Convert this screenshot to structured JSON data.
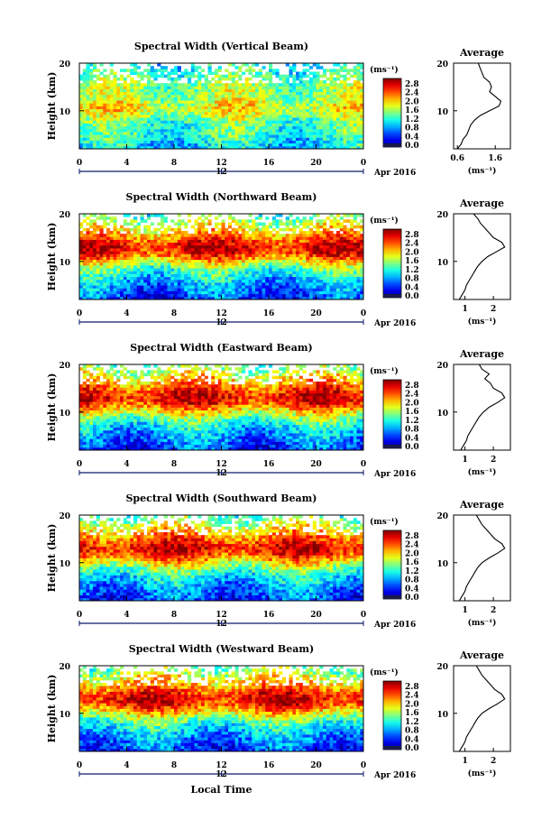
{
  "figure": {
    "xlabel": "Local Time",
    "date_label": "Apr 2016",
    "ylabel": "Height (km)",
    "colorbar_unit": "(ms⁻¹)",
    "avg_title": "Average",
    "avg_xlabel": "(ms⁻¹)",
    "x_ticks": [
      "0",
      "4",
      "8",
      "12",
      "16",
      "20",
      "0"
    ],
    "x_sub_tick": "12",
    "y_ticks": [
      "20",
      "10"
    ],
    "colorbar_ticks": [
      "2.8",
      "2.4",
      "2.0",
      "1.6",
      "1.2",
      "0.8",
      "0.4",
      "0.0"
    ]
  },
  "chart_data": [
    {
      "type": "heatmap",
      "title": "Spectral Width (Vertical Beam)",
      "xlim": [
        0,
        24
      ],
      "ylim": [
        2,
        20
      ],
      "clim": [
        0,
        3
      ],
      "profile": [
        [
          2,
          0.95
        ],
        [
          3,
          1.05
        ],
        [
          4,
          1.15
        ],
        [
          5,
          1.25
        ],
        [
          6,
          1.3
        ],
        [
          7,
          1.35
        ],
        [
          8,
          1.45
        ],
        [
          9,
          1.65
        ],
        [
          10,
          1.8
        ],
        [
          11,
          1.85
        ],
        [
          12,
          1.72
        ],
        [
          13,
          1.6
        ],
        [
          14,
          1.55
        ],
        [
          15,
          1.58
        ],
        [
          16,
          1.5
        ],
        [
          17,
          1.42
        ],
        [
          18,
          1.28
        ],
        [
          19,
          1.18
        ],
        [
          20,
          1.1
        ]
      ],
      "avg": {
        "xlim": [
          0.5,
          2.0
        ],
        "xticks": [
          "0.6",
          "1.6"
        ],
        "xtick_values": [
          0.6,
          1.6
        ],
        "x": [
          0.6,
          0.7,
          0.75,
          0.85,
          0.9,
          0.95,
          1.05,
          1.2,
          1.45,
          1.7,
          1.75,
          1.6,
          1.45,
          1.5,
          1.45,
          1.3,
          1.25,
          1.2,
          1.15
        ],
        "y": [
          2,
          3,
          4,
          5,
          6,
          7,
          8,
          9,
          10,
          11,
          12,
          13,
          14,
          15,
          16,
          17,
          18,
          19,
          20
        ]
      }
    },
    {
      "type": "heatmap",
      "title": "Spectral Width (Northward Beam)",
      "xlim": [
        0,
        24
      ],
      "ylim": [
        2,
        20
      ],
      "clim": [
        0,
        3
      ],
      "profile": [
        [
          2,
          0.5
        ],
        [
          3,
          0.6
        ],
        [
          4,
          0.7
        ],
        [
          5,
          0.8
        ],
        [
          6,
          0.95
        ],
        [
          7,
          1.1
        ],
        [
          8,
          1.3
        ],
        [
          9,
          1.55
        ],
        [
          10,
          1.9
        ],
        [
          11,
          2.3
        ],
        [
          12,
          2.6
        ],
        [
          13,
          2.7
        ],
        [
          14,
          2.55
        ],
        [
          15,
          2.3
        ],
        [
          16,
          2.1
        ],
        [
          17,
          1.9
        ],
        [
          18,
          1.7
        ],
        [
          19,
          1.5
        ],
        [
          20,
          1.3
        ]
      ],
      "avg": {
        "xlim": [
          0.6,
          2.6
        ],
        "xticks": [
          "1",
          "2"
        ],
        "xtick_values": [
          1,
          2
        ],
        "x": [
          0.8,
          0.9,
          1.0,
          1.05,
          1.15,
          1.25,
          1.35,
          1.45,
          1.6,
          1.8,
          2.1,
          2.4,
          2.3,
          2.0,
          1.85,
          1.7,
          1.55,
          1.45,
          1.3
        ],
        "y": [
          2,
          3,
          4,
          5,
          6,
          7,
          8,
          9,
          10,
          11,
          12,
          13,
          14,
          15,
          16,
          17,
          18,
          19,
          20
        ]
      }
    },
    {
      "type": "heatmap",
      "title": "Spectral Width (Eastward Beam)",
      "xlim": [
        0,
        24
      ],
      "ylim": [
        2,
        20
      ],
      "clim": [
        0,
        3
      ],
      "profile": [
        [
          2,
          0.5
        ],
        [
          3,
          0.6
        ],
        [
          4,
          0.72
        ],
        [
          5,
          0.82
        ],
        [
          6,
          0.95
        ],
        [
          7,
          1.1
        ],
        [
          8,
          1.3
        ],
        [
          9,
          1.55
        ],
        [
          10,
          1.85
        ],
        [
          11,
          2.2
        ],
        [
          12,
          2.55
        ],
        [
          13,
          2.7
        ],
        [
          14,
          2.6
        ],
        [
          15,
          2.4
        ],
        [
          16,
          2.2
        ],
        [
          17,
          2.0
        ],
        [
          18,
          1.8
        ],
        [
          19,
          1.6
        ],
        [
          20,
          1.4
        ]
      ],
      "avg": {
        "xlim": [
          0.6,
          2.6
        ],
        "xticks": [
          "1",
          "2"
        ],
        "xtick_values": [
          1,
          2
        ],
        "x": [
          0.85,
          0.95,
          1.05,
          1.1,
          1.2,
          1.3,
          1.4,
          1.5,
          1.65,
          1.85,
          2.15,
          2.4,
          2.3,
          2.0,
          1.9,
          1.7,
          1.85,
          1.6,
          1.5
        ],
        "y": [
          2,
          3,
          4,
          5,
          6,
          7,
          8,
          9,
          10,
          11,
          12,
          13,
          14,
          15,
          16,
          17,
          18,
          19,
          20
        ]
      }
    },
    {
      "type": "heatmap",
      "title": "Spectral Width (Southward Beam)",
      "xlim": [
        0,
        24
      ],
      "ylim": [
        2,
        20
      ],
      "clim": [
        0,
        3
      ],
      "profile": [
        [
          2,
          0.5
        ],
        [
          3,
          0.6
        ],
        [
          4,
          0.72
        ],
        [
          5,
          0.82
        ],
        [
          6,
          0.95
        ],
        [
          7,
          1.1
        ],
        [
          8,
          1.3
        ],
        [
          9,
          1.55
        ],
        [
          10,
          1.9
        ],
        [
          11,
          2.25
        ],
        [
          12,
          2.55
        ],
        [
          13,
          2.7
        ],
        [
          14,
          2.6
        ],
        [
          15,
          2.35
        ],
        [
          16,
          2.15
        ],
        [
          17,
          1.95
        ],
        [
          18,
          1.75
        ],
        [
          19,
          1.55
        ],
        [
          20,
          1.35
        ]
      ],
      "avg": {
        "xlim": [
          0.6,
          2.6
        ],
        "xticks": [
          "1",
          "2"
        ],
        "xtick_values": [
          1,
          2
        ],
        "x": [
          0.8,
          0.9,
          1.0,
          1.05,
          1.15,
          1.25,
          1.35,
          1.45,
          1.6,
          1.85,
          2.15,
          2.4,
          2.3,
          2.05,
          1.9,
          1.75,
          1.6,
          1.5,
          1.4
        ],
        "y": [
          2,
          3,
          4,
          5,
          6,
          7,
          8,
          9,
          10,
          11,
          12,
          13,
          14,
          15,
          16,
          17,
          18,
          19,
          20
        ]
      }
    },
    {
      "type": "heatmap",
      "title": "Spectral Width (Westward Beam)",
      "xlim": [
        0,
        24
      ],
      "ylim": [
        2,
        20
      ],
      "clim": [
        0,
        3
      ],
      "profile": [
        [
          2,
          0.5
        ],
        [
          3,
          0.6
        ],
        [
          4,
          0.7
        ],
        [
          5,
          0.8
        ],
        [
          6,
          0.95
        ],
        [
          7,
          1.1
        ],
        [
          8,
          1.3
        ],
        [
          9,
          1.55
        ],
        [
          10,
          1.9
        ],
        [
          11,
          2.25
        ],
        [
          12,
          2.55
        ],
        [
          13,
          2.7
        ],
        [
          14,
          2.6
        ],
        [
          15,
          2.35
        ],
        [
          16,
          2.15
        ],
        [
          17,
          1.95
        ],
        [
          18,
          1.75
        ],
        [
          19,
          1.55
        ],
        [
          20,
          1.35
        ]
      ],
      "avg": {
        "xlim": [
          0.6,
          2.6
        ],
        "xticks": [
          "1",
          "2"
        ],
        "xtick_values": [
          1,
          2
        ],
        "x": [
          0.8,
          0.9,
          1.0,
          1.05,
          1.15,
          1.25,
          1.35,
          1.45,
          1.6,
          1.85,
          2.15,
          2.4,
          2.3,
          2.05,
          1.9,
          1.75,
          1.6,
          1.5,
          1.4
        ],
        "y": [
          2,
          3,
          4,
          5,
          6,
          7,
          8,
          9,
          10,
          11,
          12,
          13,
          14,
          15,
          16,
          17,
          18,
          19,
          20
        ]
      }
    }
  ]
}
